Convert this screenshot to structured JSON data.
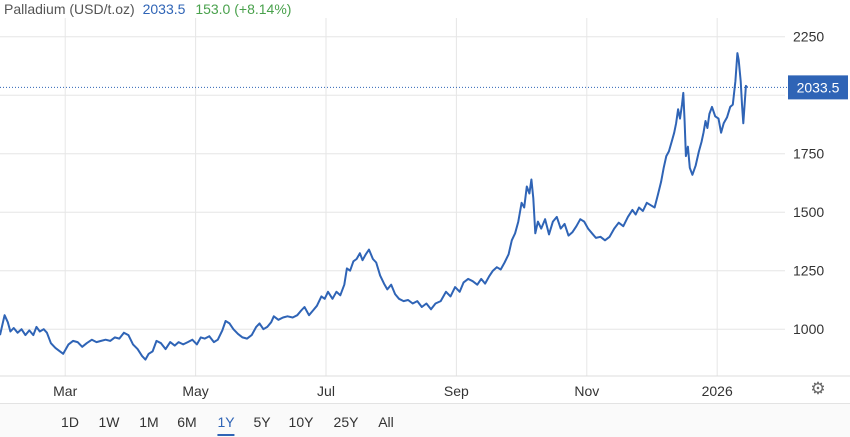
{
  "header": {
    "title": "Palladium (USD/t.oz)",
    "price": "2033.5",
    "change": "153.0 (+8.14%)"
  },
  "colors": {
    "line": "#2f64b6",
    "grid": "#e6e6e6",
    "change_positive": "#49a14c",
    "price_badge": "#2f64b6"
  },
  "timeframes": [
    "1D",
    "1W",
    "1M",
    "6M",
    "1Y",
    "5Y",
    "10Y",
    "25Y",
    "All"
  ],
  "active_timeframe": "1Y",
  "settings_icon": "gear-icon",
  "chart_data": {
    "type": "line",
    "title": "Palladium (USD/t.oz)",
    "x_unit": "months since start of February 2025",
    "ylim": [
      800,
      2330
    ],
    "yticks": [
      1000,
      1250,
      1500,
      1750,
      2000,
      2250
    ],
    "ytick_labels": [
      "1000",
      "1250",
      "1500",
      "1750",
      "",
      "2250"
    ],
    "xticks": [
      {
        "x": 1.0,
        "label": "Mar"
      },
      {
        "x": 3.0,
        "label": "May"
      },
      {
        "x": 5.0,
        "label": "Jul"
      },
      {
        "x": 7.0,
        "label": "Sep"
      },
      {
        "x": 9.0,
        "label": "Nov"
      },
      {
        "x": 11.0,
        "label": "2026"
      }
    ],
    "grid": true,
    "last_price_label": "2033.5",
    "last_price": 2033.5,
    "series": [
      {
        "values": [
          [
            0.0,
            975
          ],
          [
            0.07,
            1060
          ],
          [
            0.12,
            1030
          ],
          [
            0.16,
            990
          ],
          [
            0.21,
            1005
          ],
          [
            0.27,
            985
          ],
          [
            0.33,
            1000
          ],
          [
            0.39,
            975
          ],
          [
            0.45,
            995
          ],
          [
            0.51,
            975
          ],
          [
            0.56,
            1010
          ],
          [
            0.61,
            990
          ],
          [
            0.67,
            1000
          ],
          [
            0.72,
            985
          ],
          [
            0.78,
            940
          ],
          [
            0.85,
            920
          ],
          [
            0.92,
            905
          ],
          [
            0.97,
            895
          ],
          [
            1.05,
            935
          ],
          [
            1.12,
            950
          ],
          [
            1.19,
            945
          ],
          [
            1.26,
            925
          ],
          [
            1.33,
            940
          ],
          [
            1.41,
            955
          ],
          [
            1.48,
            945
          ],
          [
            1.55,
            950
          ],
          [
            1.62,
            955
          ],
          [
            1.69,
            950
          ],
          [
            1.76,
            965
          ],
          [
            1.83,
            960
          ],
          [
            1.9,
            985
          ],
          [
            1.97,
            975
          ],
          [
            2.04,
            935
          ],
          [
            2.11,
            915
          ],
          [
            2.18,
            885
          ],
          [
            2.23,
            870
          ],
          [
            2.28,
            895
          ],
          [
            2.34,
            905
          ],
          [
            2.4,
            950
          ],
          [
            2.47,
            940
          ],
          [
            2.54,
            915
          ],
          [
            2.61,
            945
          ],
          [
            2.68,
            930
          ],
          [
            2.74,
            945
          ],
          [
            2.81,
            935
          ],
          [
            2.88,
            945
          ],
          [
            2.95,
            955
          ],
          [
            3.02,
            935
          ],
          [
            3.08,
            965
          ],
          [
            3.14,
            960
          ],
          [
            3.21,
            970
          ],
          [
            3.28,
            945
          ],
          [
            3.34,
            955
          ],
          [
            3.41,
            995
          ],
          [
            3.46,
            1035
          ],
          [
            3.52,
            1025
          ],
          [
            3.58,
            1000
          ],
          [
            3.65,
            980
          ],
          [
            3.72,
            965
          ],
          [
            3.79,
            960
          ],
          [
            3.86,
            975
          ],
          [
            3.93,
            1010
          ],
          [
            3.98,
            1025
          ],
          [
            4.04,
            1000
          ],
          [
            4.1,
            1010
          ],
          [
            4.16,
            1030
          ],
          [
            4.2,
            1055
          ],
          [
            4.27,
            1040
          ],
          [
            4.34,
            1050
          ],
          [
            4.41,
            1055
          ],
          [
            4.49,
            1050
          ],
          [
            4.56,
            1060
          ],
          [
            4.62,
            1080
          ],
          [
            4.67,
            1095
          ],
          [
            4.74,
            1060
          ],
          [
            4.8,
            1080
          ],
          [
            4.86,
            1100
          ],
          [
            4.93,
            1140
          ],
          [
            4.98,
            1130
          ],
          [
            5.03,
            1160
          ],
          [
            5.1,
            1130
          ],
          [
            5.16,
            1160
          ],
          [
            5.22,
            1145
          ],
          [
            5.28,
            1190
          ],
          [
            5.32,
            1260
          ],
          [
            5.37,
            1250
          ],
          [
            5.42,
            1290
          ],
          [
            5.47,
            1300
          ],
          [
            5.52,
            1325
          ],
          [
            5.56,
            1295
          ],
          [
            5.61,
            1320
          ],
          [
            5.66,
            1340
          ],
          [
            5.72,
            1300
          ],
          [
            5.77,
            1285
          ],
          [
            5.83,
            1230
          ],
          [
            5.89,
            1195
          ],
          [
            5.94,
            1170
          ],
          [
            6.0,
            1190
          ],
          [
            6.06,
            1150
          ],
          [
            6.12,
            1130
          ],
          [
            6.19,
            1120
          ],
          [
            6.26,
            1125
          ],
          [
            6.33,
            1110
          ],
          [
            6.4,
            1120
          ],
          [
            6.47,
            1095
          ],
          [
            6.54,
            1110
          ],
          [
            6.61,
            1085
          ],
          [
            6.68,
            1110
          ],
          [
            6.76,
            1120
          ],
          [
            6.84,
            1160
          ],
          [
            6.91,
            1140
          ],
          [
            6.98,
            1180
          ],
          [
            7.05,
            1160
          ],
          [
            7.11,
            1200
          ],
          [
            7.18,
            1215
          ],
          [
            7.25,
            1205
          ],
          [
            7.32,
            1190
          ],
          [
            7.38,
            1215
          ],
          [
            7.44,
            1195
          ],
          [
            7.5,
            1225
          ],
          [
            7.56,
            1250
          ],
          [
            7.62,
            1265
          ],
          [
            7.68,
            1255
          ],
          [
            7.74,
            1285
          ],
          [
            7.8,
            1320
          ],
          [
            7.85,
            1380
          ],
          [
            7.9,
            1410
          ],
          [
            7.95,
            1460
          ],
          [
            8.0,
            1540
          ],
          [
            8.04,
            1520
          ],
          [
            8.08,
            1610
          ],
          [
            8.12,
            1580
          ],
          [
            8.15,
            1640
          ],
          [
            8.18,
            1560
          ],
          [
            8.21,
            1410
          ],
          [
            8.25,
            1460
          ],
          [
            8.3,
            1430
          ],
          [
            8.36,
            1470
          ],
          [
            8.42,
            1405
          ],
          [
            8.48,
            1460
          ],
          [
            8.54,
            1480
          ],
          [
            8.6,
            1430
          ],
          [
            8.66,
            1450
          ],
          [
            8.72,
            1400
          ],
          [
            8.78,
            1415
          ],
          [
            8.84,
            1440
          ],
          [
            8.9,
            1470
          ],
          [
            8.96,
            1460
          ],
          [
            9.02,
            1430
          ],
          [
            9.08,
            1410
          ],
          [
            9.14,
            1390
          ],
          [
            9.21,
            1395
          ],
          [
            9.28,
            1380
          ],
          [
            9.35,
            1395
          ],
          [
            9.42,
            1430
          ],
          [
            9.49,
            1455
          ],
          [
            9.56,
            1440
          ],
          [
            9.63,
            1480
          ],
          [
            9.7,
            1510
          ],
          [
            9.75,
            1490
          ],
          [
            9.8,
            1520
          ],
          [
            9.86,
            1505
          ],
          [
            9.92,
            1540
          ],
          [
            9.98,
            1530
          ],
          [
            10.04,
            1520
          ],
          [
            10.09,
            1575
          ],
          [
            10.14,
            1630
          ],
          [
            10.18,
            1690
          ],
          [
            10.22,
            1740
          ],
          [
            10.26,
            1760
          ],
          [
            10.3,
            1800
          ],
          [
            10.34,
            1840
          ],
          [
            10.37,
            1880
          ],
          [
            10.4,
            1940
          ],
          [
            10.43,
            1900
          ],
          [
            10.46,
            1960
          ],
          [
            10.48,
            2010
          ],
          [
            10.5,
            1890
          ],
          [
            10.52,
            1740
          ],
          [
            10.55,
            1780
          ],
          [
            10.58,
            1690
          ],
          [
            10.62,
            1660
          ],
          [
            10.67,
            1700
          ],
          [
            10.72,
            1760
          ],
          [
            10.76,
            1800
          ],
          [
            10.79,
            1840
          ],
          [
            10.82,
            1890
          ],
          [
            10.85,
            1860
          ],
          [
            10.88,
            1920
          ],
          [
            10.92,
            1950
          ],
          [
            10.97,
            1910
          ],
          [
            11.02,
            1900
          ],
          [
            11.06,
            1840
          ],
          [
            11.1,
            1880
          ],
          [
            11.15,
            1905
          ],
          [
            11.2,
            1950
          ],
          [
            11.24,
            1960
          ],
          [
            11.28,
            2060
          ],
          [
            11.31,
            2180
          ],
          [
            11.33,
            2150
          ],
          [
            11.36,
            2060
          ],
          [
            11.38,
            1960
          ],
          [
            11.4,
            1880
          ],
          [
            11.44,
            2040
          ],
          [
            11.46,
            2033.5
          ]
        ]
      }
    ]
  }
}
